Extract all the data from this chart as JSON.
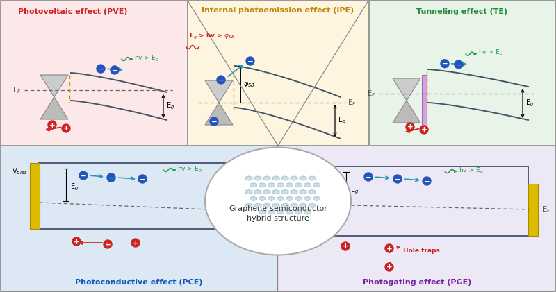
{
  "bg_color": "#f0f0f0",
  "panel_colors": {
    "pve": "#fce8e8",
    "ipe": "#fdf5e0",
    "te": "#e8f4e8",
    "pce": "#dce8f4",
    "pge": "#ede8f5"
  },
  "title_colors": {
    "pve": "#cc2222",
    "ipe": "#bb8800",
    "te": "#228833",
    "pce": "#1155bb",
    "pge": "#772299"
  },
  "titles": {
    "pve": "Photovoltaic effect (PVE)",
    "ipe": "Internal photoemission effect (IPE)",
    "te": "Tunneling effect (TE)",
    "pce": "Photoconductive effect (PCE)",
    "pge": "Photogating effect (PGE)"
  },
  "center_text": "Graphene-semiconductor\nhybrid structure",
  "arrow_color": "#2299bb",
  "photon_color": "#229944",
  "hole_color": "#cc2222",
  "electron_color": "#2255bb",
  "ef_color": "#555555",
  "band_color": "#445566",
  "orange_color": "#dd8800"
}
